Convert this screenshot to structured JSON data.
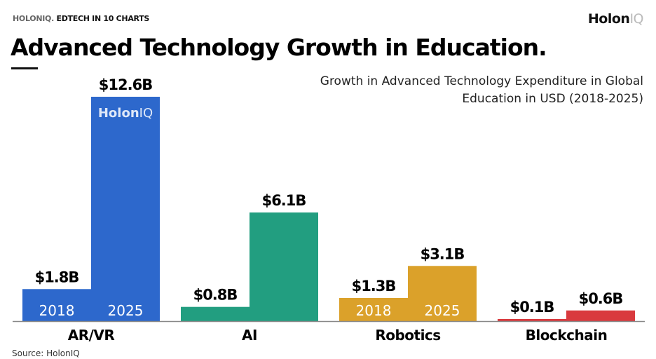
{
  "header": {
    "kicker_brand": "HOLONIQ.",
    "kicker_text": "EDTECH IN 10 CHARTS",
    "logo_main": "Holon",
    "logo_accent": "IQ"
  },
  "source": "Source: HolonIQ",
  "watermark": {
    "main": "Holon",
    "accent": "IQ"
  },
  "chart_data": {
    "type": "bar",
    "title": "Advanced Technology Growth in Education.",
    "subtitle": "Growth in Advanced Technology Expenditure in Global Education in USD (2018-2025)",
    "categories": [
      "AR/VR",
      "AI",
      "Robotics",
      "Blockchain"
    ],
    "series": [
      {
        "name": "2018",
        "values": [
          1.8,
          0.8,
          1.3,
          0.1
        ],
        "labels": [
          "$1.8B",
          "$0.8B",
          "$1.3B",
          "$0.1B"
        ]
      },
      {
        "name": "2025",
        "values": [
          12.6,
          6.1,
          3.1,
          0.6
        ],
        "labels": [
          "$12.6B",
          "$6.1B",
          "$3.1B",
          "$0.6B"
        ]
      }
    ],
    "year_labels_shown_for": [
      "AR/VR",
      "Robotics"
    ],
    "colors": [
      "#2d68cc",
      "#229e80",
      "#dba12a",
      "#d93a3e"
    ],
    "ylim": [
      0,
      12.6
    ],
    "grid": false,
    "legend": "none"
  }
}
